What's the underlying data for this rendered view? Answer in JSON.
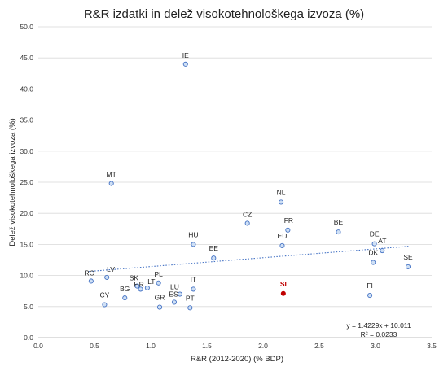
{
  "chart_data": {
    "type": "scatter",
    "title": "R&R izdatki in delež visokotehnološkega izvoza (%)",
    "xlabel": "R&R (2012-2020) (% BDP)",
    "ylabel": "Delež visokotehnološkega izvoza (%)",
    "xlim": [
      0.0,
      3.5
    ],
    "ylim": [
      0.0,
      50.0
    ],
    "x_ticks": [
      "0.0",
      "0.5",
      "1.0",
      "1.5",
      "2.0",
      "2.5",
      "3.0",
      "3.5"
    ],
    "y_ticks": [
      "0.0",
      "5.0",
      "10.0",
      "15.0",
      "20.0",
      "25.0",
      "30.0",
      "35.0",
      "40.0",
      "45.0",
      "50.0"
    ],
    "grid": true,
    "colors": {
      "point_fill": "#cfe0f5",
      "point_stroke": "#4472c4",
      "highlight": "#c00000",
      "trendline": "#4472c4",
      "grid": "#d9d9d9"
    },
    "points": [
      {
        "label": "IE",
        "x": 1.31,
        "y": 44.0
      },
      {
        "label": "MT",
        "x": 0.65,
        "y": 24.8
      },
      {
        "label": "NL",
        "x": 2.16,
        "y": 21.8
      },
      {
        "label": "CZ",
        "x": 1.86,
        "y": 18.4
      },
      {
        "label": "FR",
        "x": 2.22,
        "y": 17.3
      },
      {
        "label": "BE",
        "x": 2.67,
        "y": 17.0
      },
      {
        "label": "DE",
        "x": 2.99,
        "y": 15.1
      },
      {
        "label": "HU",
        "x": 1.38,
        "y": 15.0
      },
      {
        "label": "EU",
        "x": 2.17,
        "y": 14.8
      },
      {
        "label": "AT",
        "x": 3.06,
        "y": 14.0
      },
      {
        "label": "EE",
        "x": 1.56,
        "y": 12.8
      },
      {
        "label": "DK",
        "x": 2.98,
        "y": 12.1
      },
      {
        "label": "SE",
        "x": 3.29,
        "y": 11.4
      },
      {
        "label": "LV",
        "x": 0.61,
        "y": 9.7
      },
      {
        "label": "RO",
        "x": 0.47,
        "y": 9.1
      },
      {
        "label": "PL",
        "x": 1.07,
        "y": 8.8
      },
      {
        "label": "SK",
        "x": 0.88,
        "y": 8.3
      },
      {
        "label": "HR",
        "x": 0.91,
        "y": 7.8
      },
      {
        "label": "LT",
        "x": 0.97,
        "y": 8.0
      },
      {
        "label": "IT",
        "x": 1.38,
        "y": 7.8
      },
      {
        "label": "SI",
        "x": 2.18,
        "y": 7.1,
        "highlight": true
      },
      {
        "label": "LU",
        "x": 1.26,
        "y": 7.0
      },
      {
        "label": "FI",
        "x": 2.95,
        "y": 6.8
      },
      {
        "label": "BG",
        "x": 0.77,
        "y": 6.4
      },
      {
        "label": "ES",
        "x": 1.21,
        "y": 5.7
      },
      {
        "label": "CY",
        "x": 0.59,
        "y": 5.3
      },
      {
        "label": "GR",
        "x": 1.08,
        "y": 4.9
      },
      {
        "label": "PT",
        "x": 1.35,
        "y": 4.8
      }
    ],
    "trendline": {
      "slope": 1.4229,
      "intercept": 10.011,
      "x_range": [
        0.45,
        3.3
      ],
      "equation": "y = 1.4229x + 10.011",
      "r2": "R² = 0.0233"
    }
  }
}
